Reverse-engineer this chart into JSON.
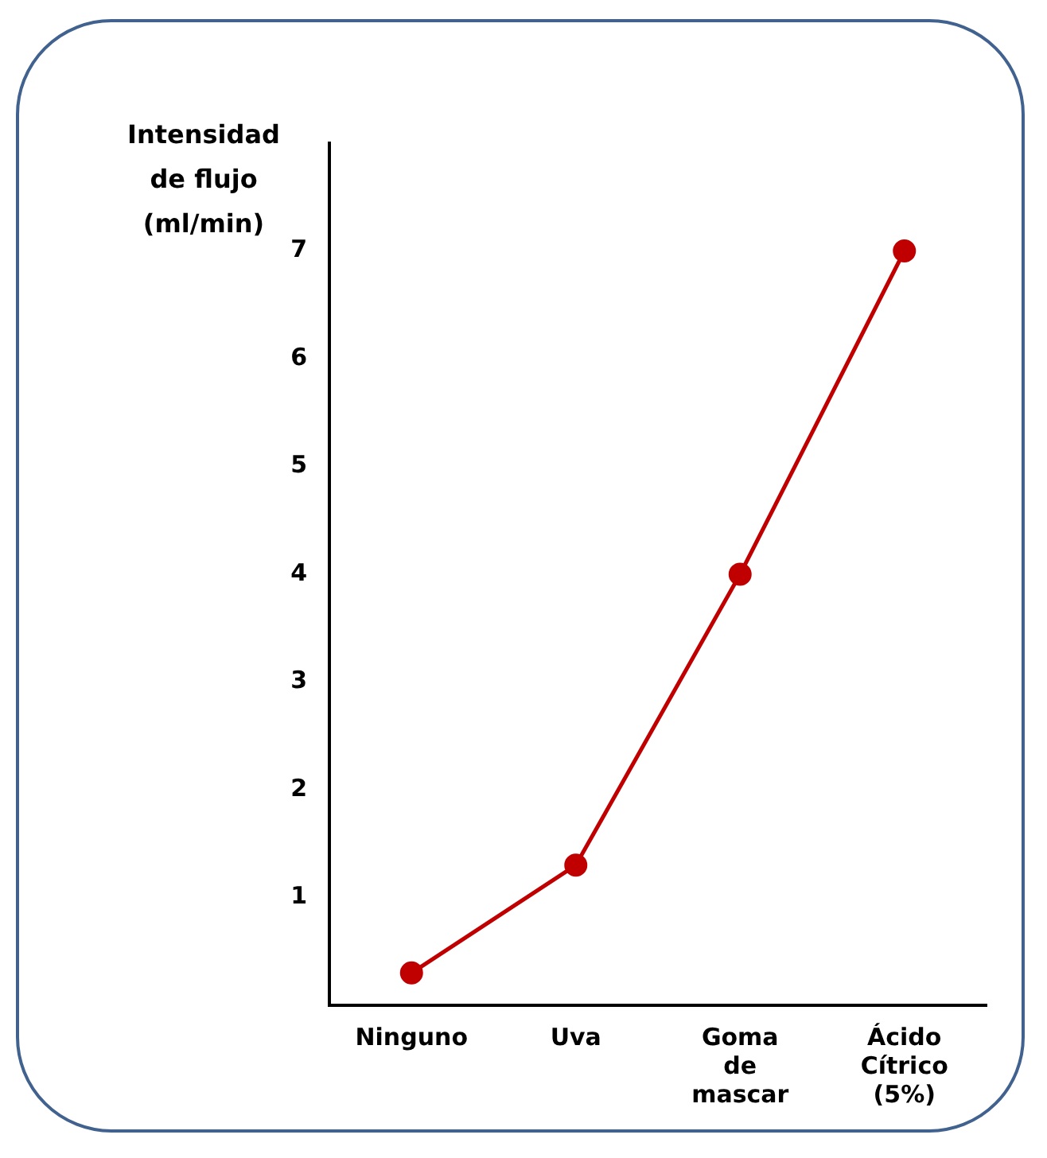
{
  "chart_data": {
    "type": "line",
    "ylabel": "Intensidad\nde flujo\n(ml/min)",
    "categories": [
      "Ninguno",
      "Uva",
      "Goma de mascar",
      "Ácido Cítrico (5%)"
    ],
    "series": [
      {
        "color": "#c00000",
        "values": [
          0.3,
          1.3,
          4.0,
          7.0
        ]
      }
    ],
    "ylim": [
      0,
      8
    ],
    "yticks": [
      1,
      2,
      3,
      4,
      5,
      6,
      7
    ],
    "grid": false,
    "legend": false,
    "marker": "circle",
    "line_style": "solid"
  }
}
